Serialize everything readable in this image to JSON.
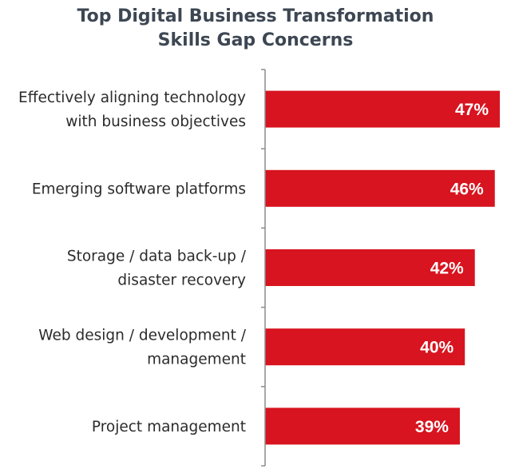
{
  "chart_data": {
    "type": "bar",
    "orientation": "horizontal",
    "title": [
      "Top Digital Business Transformation",
      "Skills Gap Concerns"
    ],
    "categories": [
      [
        "Effectively aligning technology",
        "with business objectives"
      ],
      [
        "Emerging software platforms"
      ],
      [
        "Storage / data back-up /",
        "disaster recovery"
      ],
      [
        "Web design / development /",
        "management"
      ],
      [
        "Project management"
      ]
    ],
    "values": [
      47,
      46,
      42,
      40,
      39
    ],
    "value_labels": [
      "47%",
      "46%",
      "42%",
      "40%",
      "39%"
    ],
    "xlim": [
      0,
      47
    ],
    "grid": false,
    "legend": "none",
    "bar_color": "#d7141f",
    "axis_color": "#8c8c8c"
  }
}
